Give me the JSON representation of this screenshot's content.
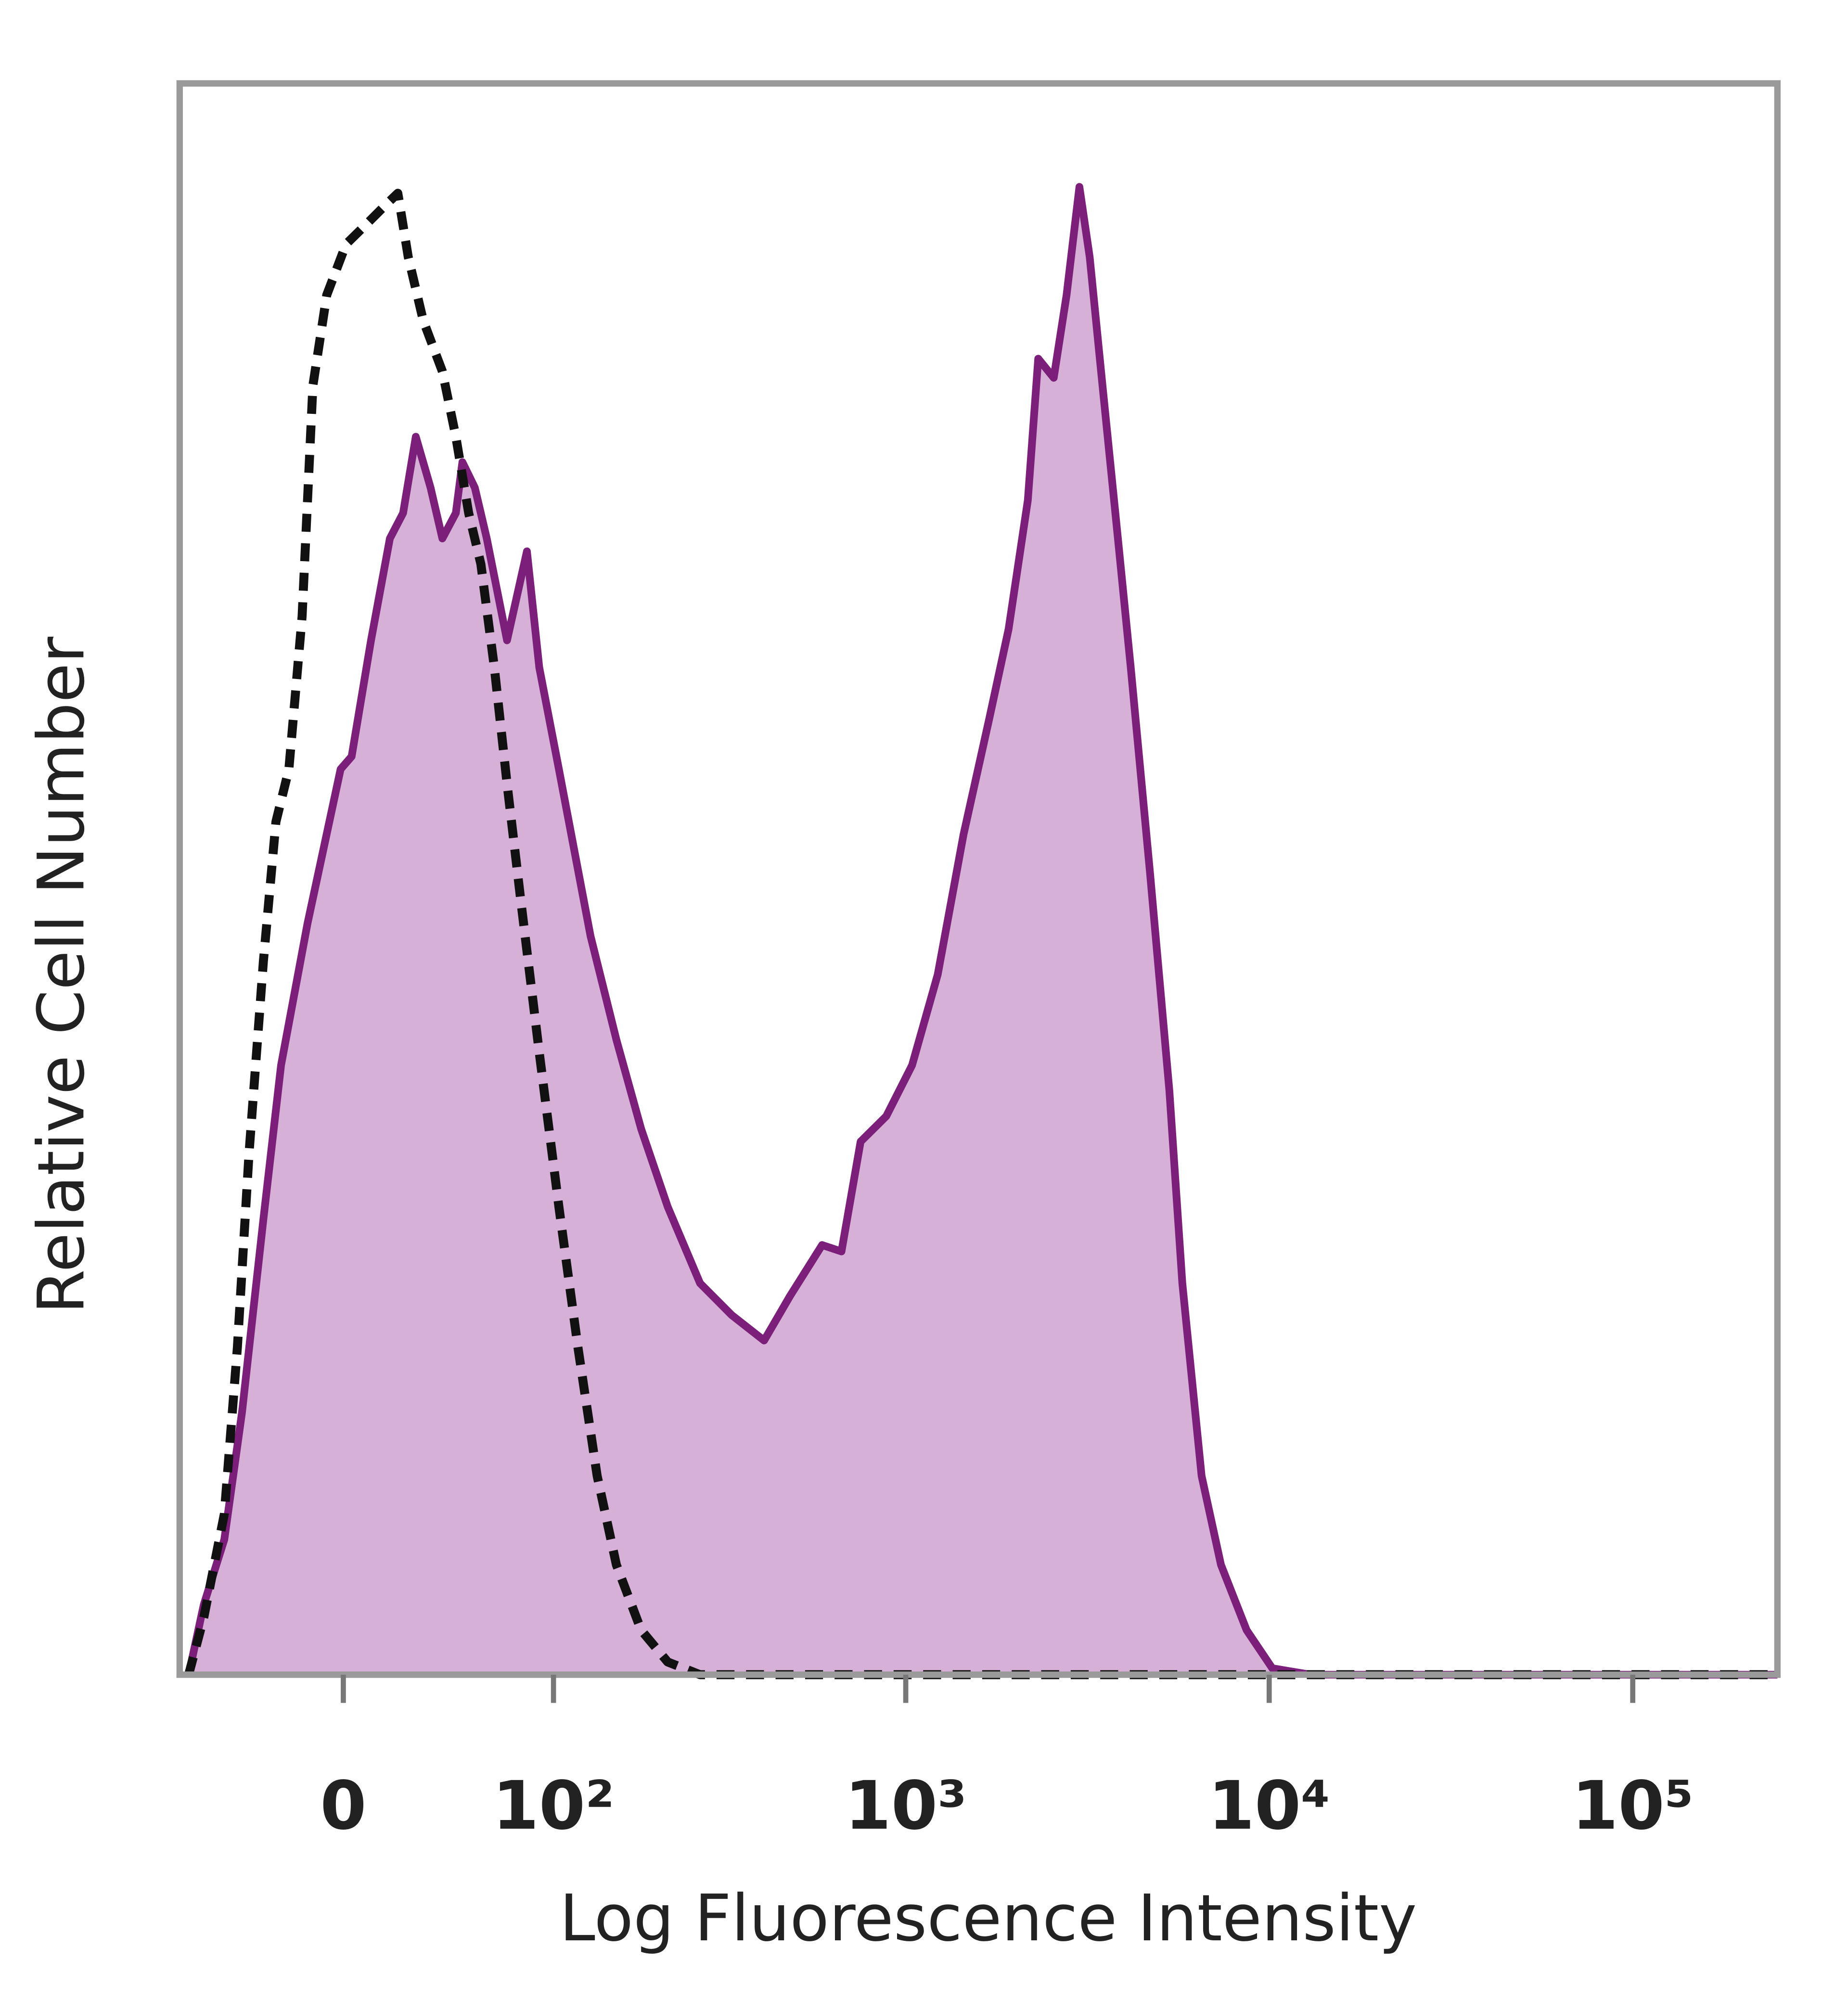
{
  "chart_data": {
    "type": "histogram-overlay",
    "xlabel": "Log Fluorescence Intensity",
    "ylabel": "Relative Cell Number",
    "xscale": "biexponential",
    "xlim": [
      -70,
      250000
    ],
    "ylim": [
      0,
      100
    ],
    "xticks": [
      0,
      {
        "value": 100,
        "label": "10²"
      },
      {
        "value": 1000,
        "label": "10³"
      },
      {
        "value": 10000,
        "label": "10⁴"
      },
      {
        "value": 100000,
        "label": "10⁵"
      }
    ],
    "series": [
      {
        "color": "#7b1f7b",
        "fill": "#d6b0d6",
        "dashed": false,
        "x": [
          -65,
          -57,
          -47,
          -39,
          -30,
          -23,
          -13,
          -1,
          3,
          10,
          17,
          22,
          27,
          33,
          38,
          44,
          47,
          53,
          59,
          70,
          82,
          90,
          104,
          130,
          155,
          183,
          218,
          269,
          330,
          406,
          479,
          588,
          665,
          751,
          884,
          1041,
          1225,
          1442,
          1698,
          1919,
          2168,
          2315,
          2555,
          2772,
          3007,
          3208,
          3479,
          3836,
          4161,
          4701,
          5315,
          5768,
          6518,
          7366,
          8670,
          10200,
          13000,
          250000
        ],
        "values": [
          0,
          4.4,
          8.5,
          16.5,
          28.6,
          38.3,
          47.2,
          56.9,
          57.7,
          65,
          71.4,
          73,
          77.8,
          74.6,
          71.4,
          73,
          76.2,
          74.6,
          71.4,
          65,
          70.6,
          63.3,
          56.9,
          46.4,
          39.9,
          34.3,
          29.4,
          24.6,
          22.6,
          21,
          23.8,
          27,
          26.6,
          33.5,
          35.1,
          38.3,
          44,
          52.8,
          60.1,
          65.7,
          73.8,
          82.7,
          81.5,
          86.7,
          93.5,
          89.1,
          81,
          71.4,
          63.3,
          50.4,
          36.7,
          24.6,
          12.5,
          6.9,
          2.8,
          0.4,
          0,
          0
        ]
      },
      {
        "color": "#111111",
        "dashed": true,
        "x": [
          -65,
          -57,
          -47,
          -41,
          -36,
          -30,
          -25,
          -20,
          -15,
          -11,
          -6,
          1,
          8,
          15,
          20,
          24,
          30,
          38,
          44,
          50,
          56,
          63,
          70,
          78,
          90,
          104,
          119,
          136,
          155,
          183,
          218,
          269,
          250000
        ],
        "values": [
          0,
          3.6,
          10.1,
          20.6,
          32.7,
          44.8,
          53.6,
          56.9,
          66.5,
          81,
          86.7,
          89.9,
          91.1,
          92.3,
          93.1,
          89.1,
          85.1,
          81.9,
          77.8,
          73,
          69.8,
          63.3,
          56,
          48.8,
          39.1,
          29.4,
          20.6,
          12.5,
          6.9,
          2.8,
          0.8,
          0,
          0
        ]
      }
    ]
  }
}
